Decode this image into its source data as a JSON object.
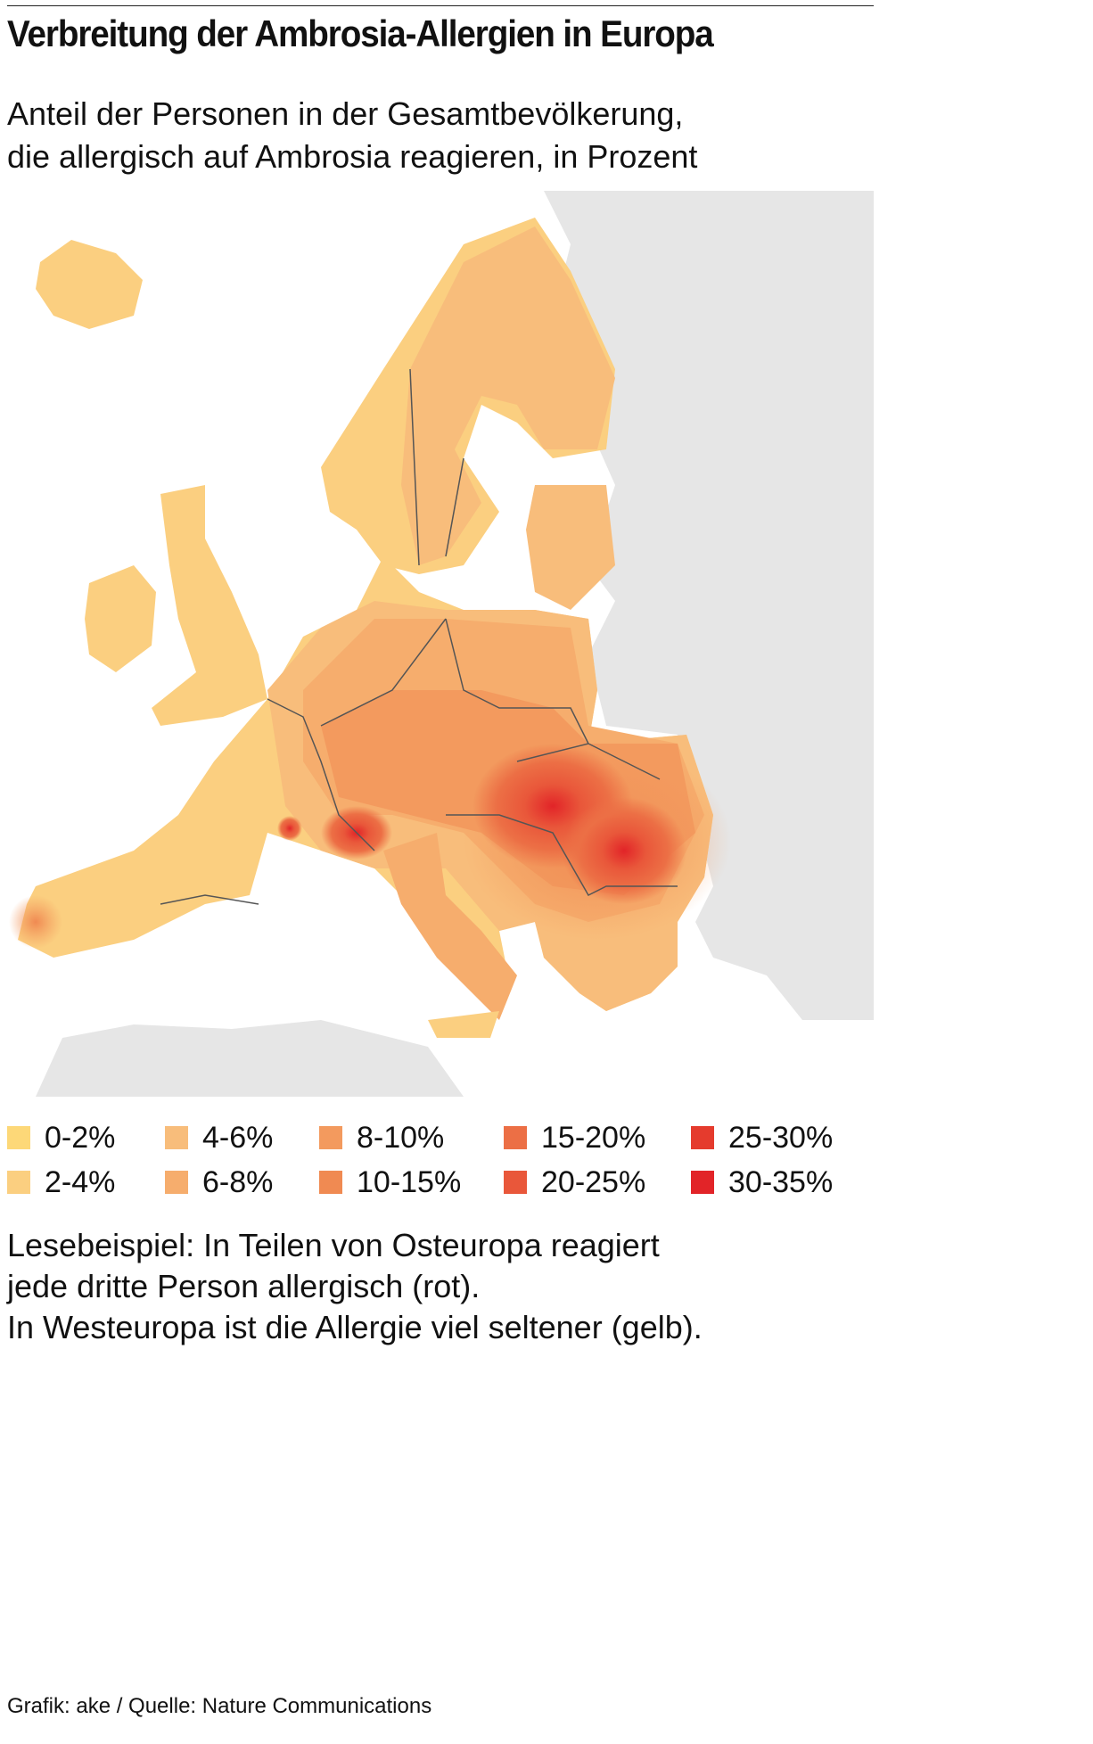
{
  "header": {
    "title": "Verbreitung der Ambrosia-Allergien in Europa",
    "subtitle": [
      "Anteil der Personen in der Gesamtbevölkerung,",
      "die allergisch auf Ambrosia reagieren, in Prozent"
    ]
  },
  "legend": [
    {
      "label": "0-2%",
      "color": "#fdd878"
    },
    {
      "label": "2-4%",
      "color": "#fbcf80"
    },
    {
      "label": "4-6%",
      "color": "#f8bd7b"
    },
    {
      "label": "6-8%",
      "color": "#f6ad6d"
    },
    {
      "label": "8-10%",
      "color": "#f39a5e"
    },
    {
      "label": "10-15%",
      "color": "#f08a52"
    },
    {
      "label": "15-20%",
      "color": "#ec6f45"
    },
    {
      "label": "20-25%",
      "color": "#e9573a"
    },
    {
      "label": "25-30%",
      "color": "#e53b2d"
    },
    {
      "label": "30-35%",
      "color": "#e22428"
    }
  ],
  "note": [
    "Lesebeispiel: In Teilen von Osteuropa reagiert",
    "jede dritte Person allergisch (rot).",
    "In Westeuropa ist die Allergie viel seltener (gelb)."
  ],
  "credit": "Grafik: ake / Quelle: Nature Communications"
}
